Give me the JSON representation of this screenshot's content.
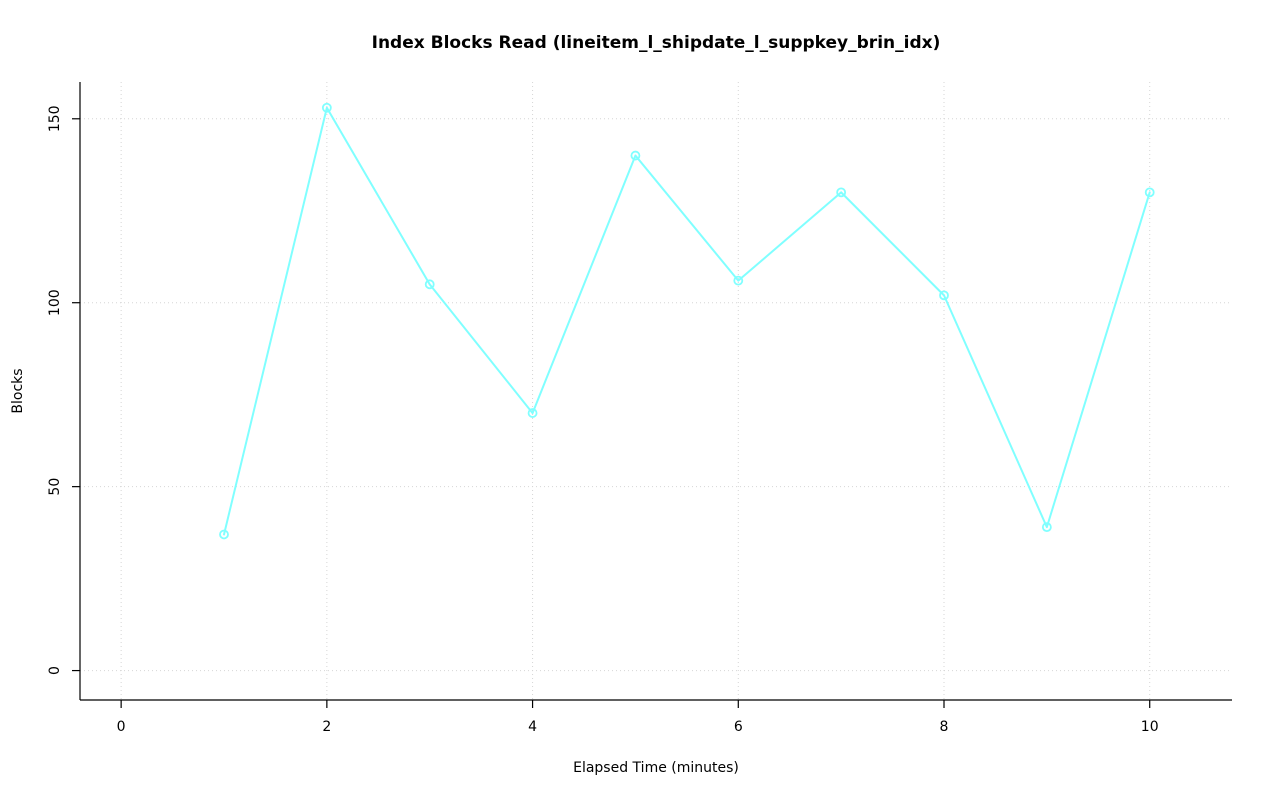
{
  "chart_data": {
    "type": "line",
    "title": "Index Blocks Read (lineitem_l_shipdate_l_suppkey_brin_idx)",
    "xlabel": "Elapsed Time (minutes)",
    "ylabel": "Blocks",
    "x": [
      1,
      2,
      3,
      4,
      5,
      6,
      7,
      8,
      9,
      10
    ],
    "y": [
      37,
      153,
      105,
      70,
      140,
      106,
      130,
      102,
      39,
      130
    ],
    "xticks": [
      0,
      2,
      4,
      6,
      8,
      10
    ],
    "yticks": [
      0,
      50,
      100,
      150
    ],
    "xlim": [
      -0.4,
      10.8
    ],
    "ylim": [
      -8,
      160
    ],
    "grid": true,
    "legend": "none",
    "marker": "open-circle",
    "colors": {
      "line": "#80FFFF",
      "grid": "#D6D6D6",
      "axis": "#000000",
      "text": "#000000",
      "background": "#FFFFFF"
    }
  }
}
